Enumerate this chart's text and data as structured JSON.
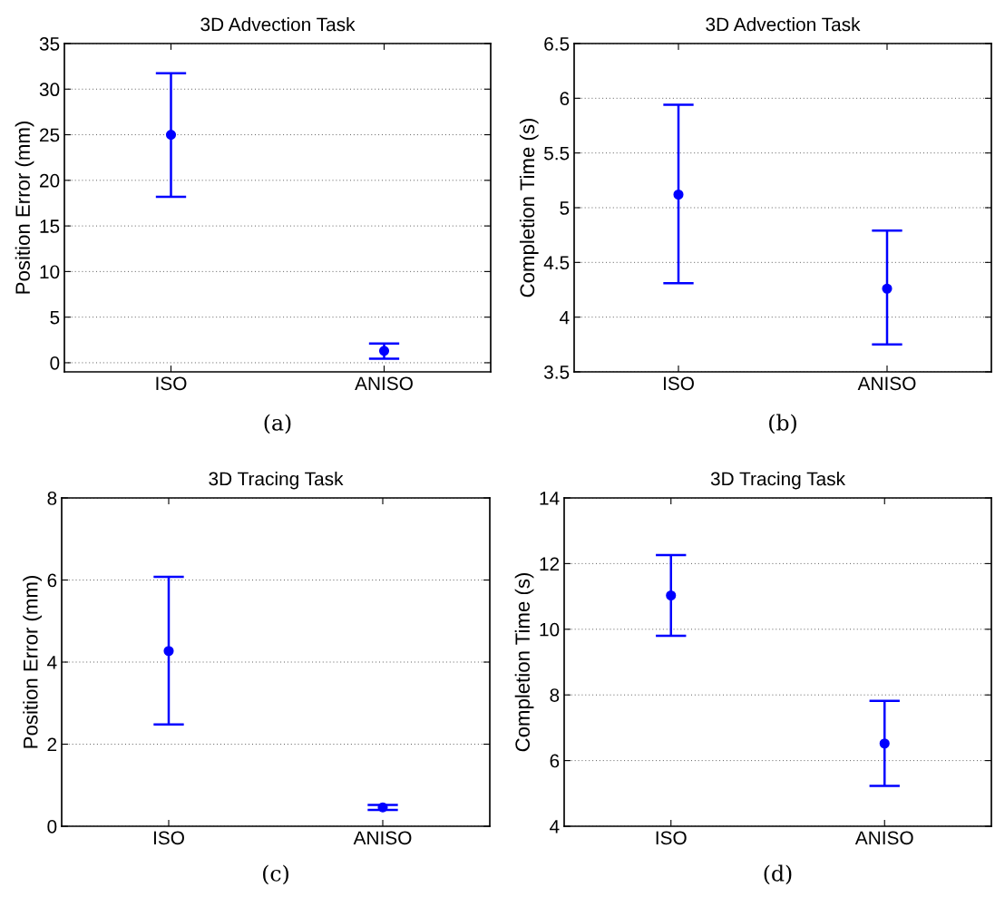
{
  "chart_data": [
    {
      "type": "scatter",
      "title": "3D Advection Task",
      "ylabel": "Position Error (mm)",
      "categories": [
        "ISO",
        "ANISO"
      ],
      "values": [
        25,
        1.3
      ],
      "errors": [
        [
          18.2,
          31.75
        ],
        [
          0.45,
          2.1
        ]
      ],
      "color": "#0000ff",
      "marker": "circle",
      "ylim": [
        -1,
        35
      ],
      "yticks": [
        0,
        5,
        10,
        15,
        20,
        25,
        30,
        35
      ],
      "grid": "y",
      "annotations": [
        "(a)"
      ]
    },
    {
      "type": "scatter",
      "title": "3D Advection Task",
      "ylabel": "Completion Time (s)",
      "categories": [
        "ISO",
        "ANISO"
      ],
      "values": [
        5.12,
        4.26
      ],
      "errors": [
        [
          4.31,
          5.94
        ],
        [
          3.75,
          4.79
        ]
      ],
      "color": "#0000ff",
      "marker": "circle",
      "ylim": [
        3.5,
        6.5
      ],
      "yticks": [
        3.5,
        4,
        4.5,
        5,
        5.5,
        6,
        6.5
      ],
      "grid": "y",
      "annotations": [
        "(b)"
      ]
    },
    {
      "type": "scatter",
      "title": "3D Tracing Task",
      "ylabel": "Position Error (mm)",
      "categories": [
        "ISO",
        "ANISO"
      ],
      "values": [
        4.27,
        0.46
      ],
      "errors": [
        [
          2.48,
          6.08
        ],
        [
          0.4,
          0.52
        ]
      ],
      "color": "#0000ff",
      "marker": "circle",
      "ylim": [
        0,
        8
      ],
      "yticks": [
        0,
        2,
        4,
        6,
        8
      ],
      "grid": "y",
      "annotations": [
        "(c)"
      ]
    },
    {
      "type": "scatter",
      "title": "3D Tracing Task",
      "ylabel": "Completion Time (s)",
      "categories": [
        "ISO",
        "ANISO"
      ],
      "values": [
        11.03,
        6.52
      ],
      "errors": [
        [
          9.8,
          12.26
        ],
        [
          5.23,
          7.82
        ]
      ],
      "color": "#0000ff",
      "marker": "circle",
      "ylim": [
        4,
        14
      ],
      "yticks": [
        4,
        6,
        8,
        10,
        12,
        14
      ],
      "grid": "y",
      "annotations": [
        "(d)"
      ]
    }
  ]
}
